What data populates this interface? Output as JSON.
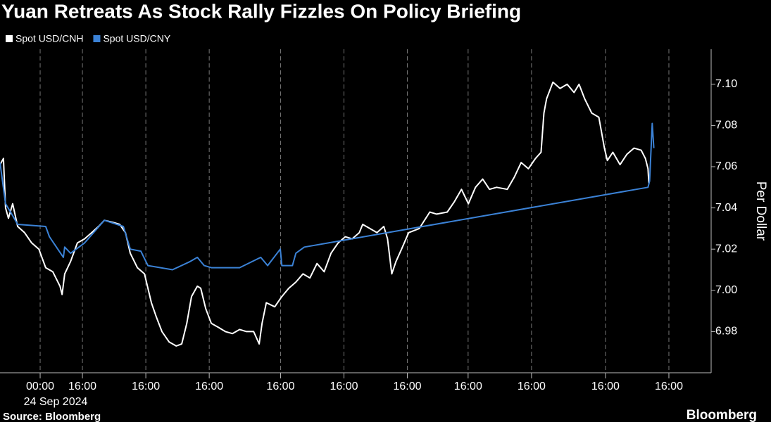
{
  "chart_data": {
    "type": "line",
    "title": "Yuan Retreats As Stock Rally Fizzles On Policy Briefing",
    "y_label": "Per Dollar",
    "date_label": "24 Sep 2024",
    "source": "Source: Bloomberg",
    "brand": "Bloomberg",
    "grid": "x",
    "xlim": [
      -15.2,
      254
    ],
    "xticks": [
      {
        "value": 0,
        "label": "00:00"
      },
      {
        "value": 16,
        "label": "16:00"
      },
      {
        "value": 40,
        "label": "16:00"
      },
      {
        "value": 64,
        "label": "16:00"
      },
      {
        "value": 91,
        "label": "16:00"
      },
      {
        "value": 115,
        "label": "16:00"
      },
      {
        "value": 139,
        "label": "16:00"
      },
      {
        "value": 162,
        "label": "16:00"
      },
      {
        "value": 186,
        "label": "16:00"
      },
      {
        "value": 214,
        "label": "16:00"
      },
      {
        "value": 238,
        "label": "16:00"
      }
    ],
    "ylim": [
      6.96,
      7.117
    ],
    "yticks": [
      6.98,
      {
        "value": 7.0,
        "label": "7.00"
      },
      7.02,
      7.04,
      7.06,
      7.08,
      {
        "value": 7.1,
        "label": "7.10"
      }
    ],
    "series": [
      {
        "name": "Spot USD/CNH",
        "color": "#ffffff",
        "x": [
          -15.2,
          -13.9,
          -13.1,
          -12.0,
          -10.4,
          -8.5,
          -5.9,
          -3.2,
          -0.5,
          2.1,
          4.8,
          7.5,
          8.3,
          9.3,
          11.5,
          14.1,
          16.8,
          19.5,
          22.1,
          24.3,
          27.5,
          30.1,
          32.3,
          34.1,
          36.8,
          39.5,
          40.8,
          42.1,
          44.0,
          46.1,
          48.8,
          51.5,
          53.6,
          55.5,
          57.3,
          59.5,
          60.8,
          62.7,
          64.8,
          67.5,
          70.1,
          72.8,
          75.5,
          78.1,
          80.8,
          82.9,
          84.0,
          85.6,
          88.8,
          91.5,
          94.1,
          96.8,
          99.5,
          102.1,
          104.8,
          107.5,
          110.1,
          112.8,
          115.5,
          118.1,
          120.8,
          122.1,
          124.8,
          127.5,
          130.1,
          131.5,
          133.1,
          134.7,
          136.8,
          139.5,
          143.5,
          147.5,
          150.1,
          154.1,
          156.8,
          159.5,
          162.1,
          164.8,
          167.5,
          170.1,
          172.8,
          176.8,
          179.5,
          182.1,
          184.8,
          187.5,
          189.6,
          190.7,
          191.7,
          194.1,
          196.8,
          199.5,
          202.1,
          204.0,
          206.1,
          208.8,
          211.5,
          213.6,
          214.7,
          216.8,
          219.5,
          222.1,
          224.8,
          227.5,
          229.1,
          230.1,
          230.4
        ],
        "values": [
          7.061,
          7.064,
          7.04,
          7.035,
          7.042,
          7.031,
          7.028,
          7.023,
          7.02,
          7.011,
          7.009,
          7.002,
          6.998,
          7.008,
          7.014,
          7.023,
          7.025,
          7.028,
          7.031,
          7.034,
          7.033,
          7.032,
          7.028,
          7.018,
          7.011,
          7.008,
          7.001,
          6.994,
          6.987,
          6.98,
          6.975,
          6.973,
          6.974,
          6.984,
          6.997,
          7.002,
          7.001,
          6.991,
          6.984,
          6.982,
          6.98,
          6.979,
          6.981,
          6.98,
          6.98,
          6.974,
          6.984,
          6.994,
          6.992,
          6.997,
          7.001,
          7.004,
          7.008,
          7.006,
          7.013,
          7.009,
          7.018,
          7.023,
          7.026,
          7.025,
          7.028,
          7.032,
          7.03,
          7.028,
          7.031,
          7.025,
          7.008,
          7.014,
          7.02,
          7.028,
          7.03,
          7.038,
          7.037,
          7.038,
          7.043,
          7.049,
          7.042,
          7.05,
          7.054,
          7.049,
          7.05,
          7.049,
          7.055,
          7.062,
          7.059,
          7.064,
          7.067,
          7.086,
          7.093,
          7.101,
          7.098,
          7.1,
          7.096,
          7.1,
          7.093,
          7.086,
          7.084,
          7.069,
          7.063,
          7.067,
          7.061,
          7.066,
          7.069,
          7.068,
          7.064,
          7.059,
          7.052
        ]
      },
      {
        "name": "Spot USD/CNY",
        "color": "#3b82d6",
        "x": [
          -15.2,
          -13.1,
          -11.2,
          -8.5,
          2.1,
          3.5,
          8.8,
          9.3,
          11.5,
          16.8,
          24.3,
          31.5,
          34.1,
          38.1,
          40.8,
          50.1,
          56.8,
          59.5,
          62.1,
          64.8,
          75.5,
          83.5,
          86.1,
          90.9,
          91.5,
          95.5,
          96.8,
          100.0,
          230.1,
          230.7,
          231.7,
          232.3
        ],
        "values": [
          7.062,
          7.042,
          7.038,
          7.032,
          7.031,
          7.026,
          7.016,
          7.021,
          7.018,
          7.023,
          7.034,
          7.031,
          7.02,
          7.019,
          7.012,
          7.01,
          7.014,
          7.016,
          7.012,
          7.011,
          7.011,
          7.016,
          7.012,
          7.02,
          7.012,
          7.012,
          7.018,
          7.021,
          7.05,
          7.053,
          7.081,
          7.069
        ]
      }
    ]
  }
}
